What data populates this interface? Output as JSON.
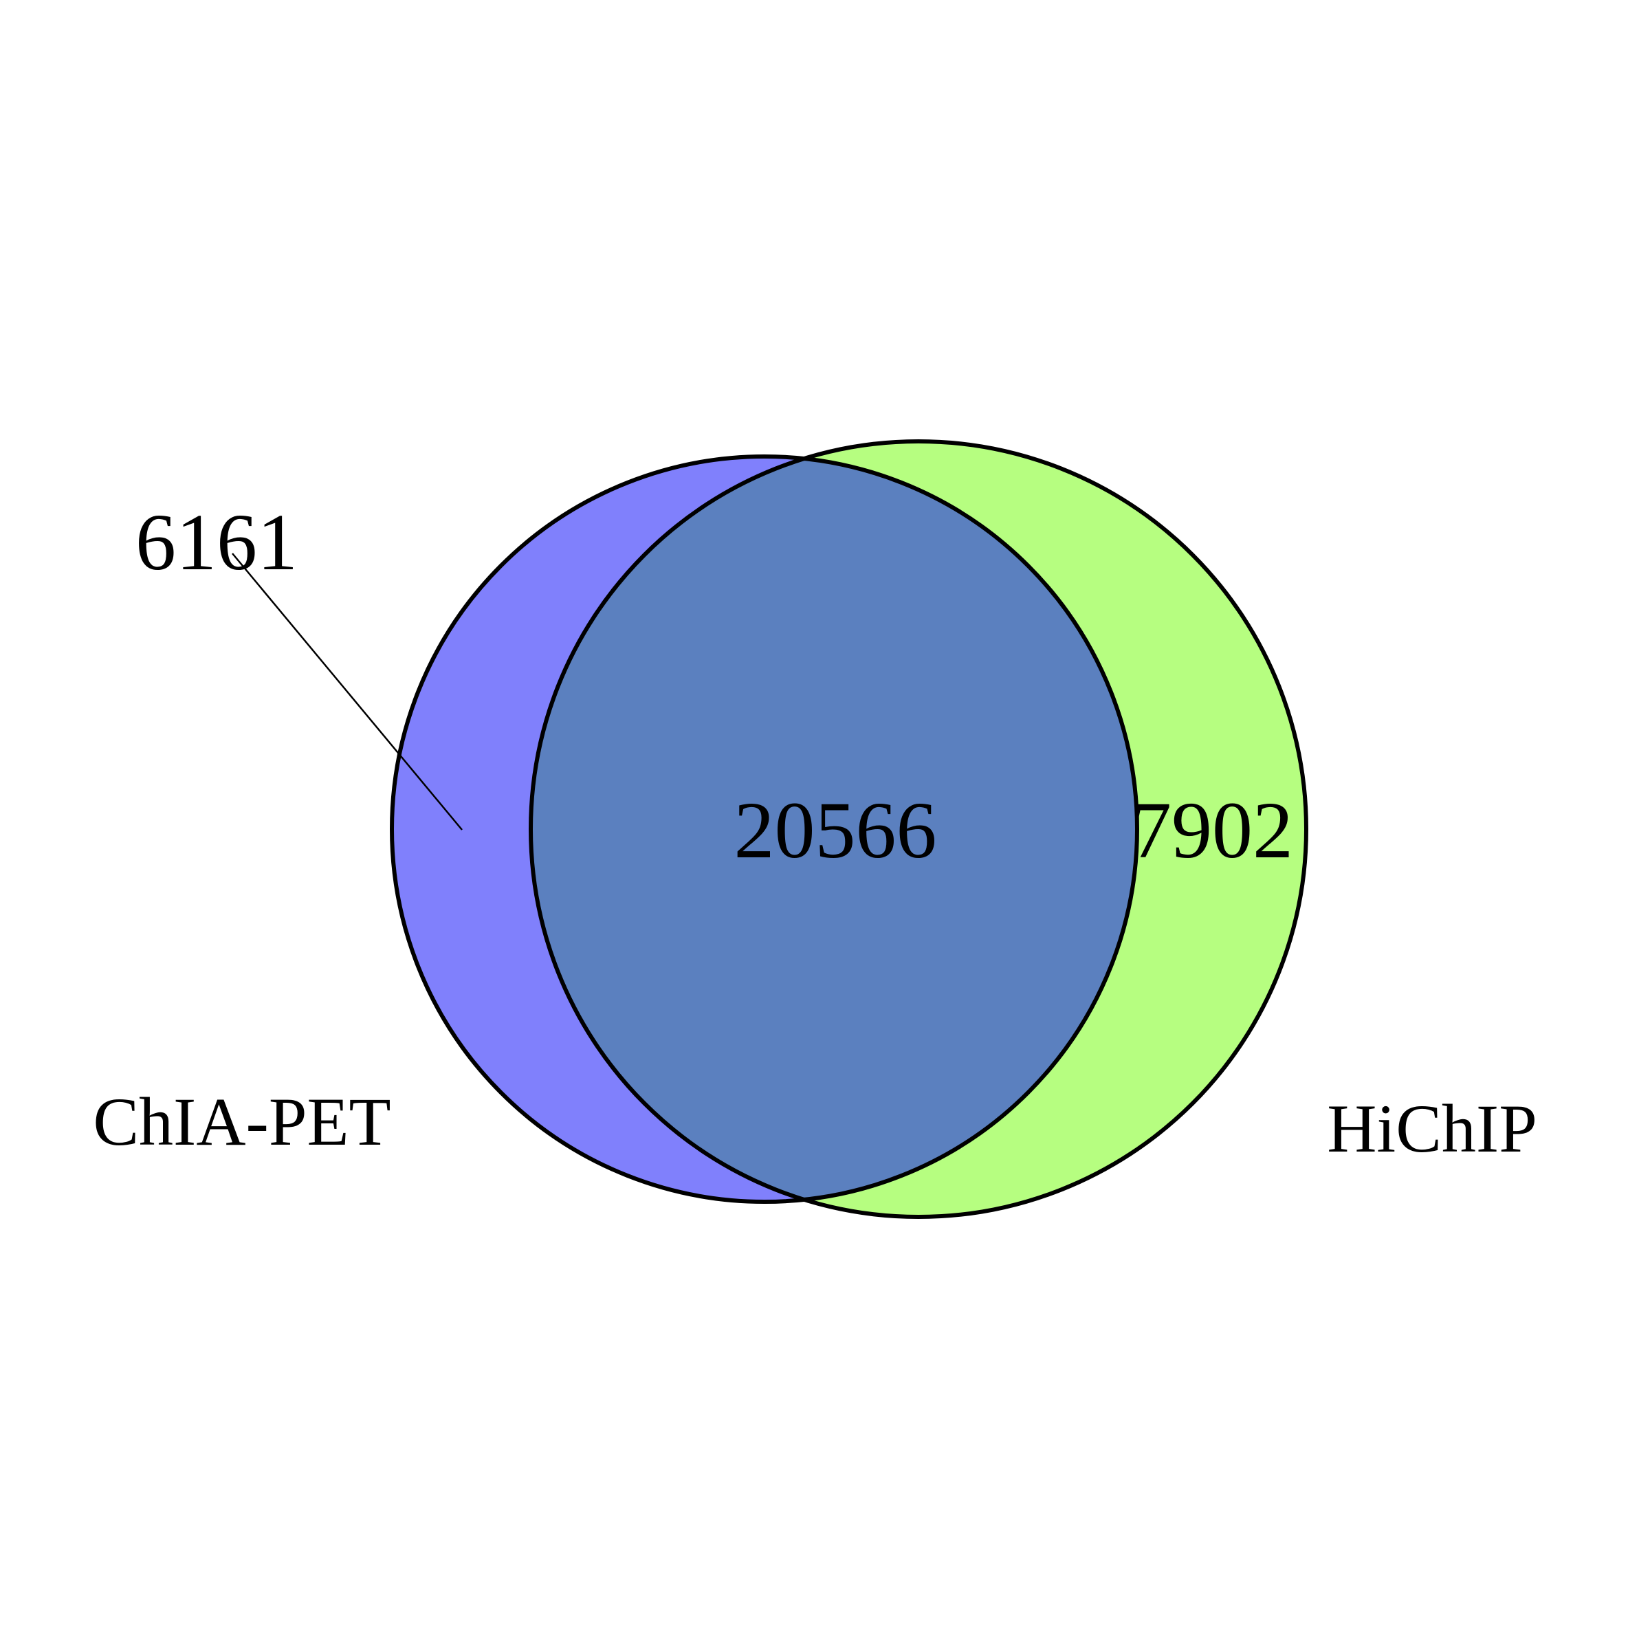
{
  "sets": [
    {
      "name": "ChIA-PET",
      "only_count": "6161",
      "fill": "#8080fc"
    },
    {
      "name": "HiChIP",
      "only_count": "7902",
      "fill": "#b6fe80"
    }
  ],
  "intersection": {
    "count": "20566",
    "fill": "#5b80bf"
  },
  "outline_color": "#000000"
}
